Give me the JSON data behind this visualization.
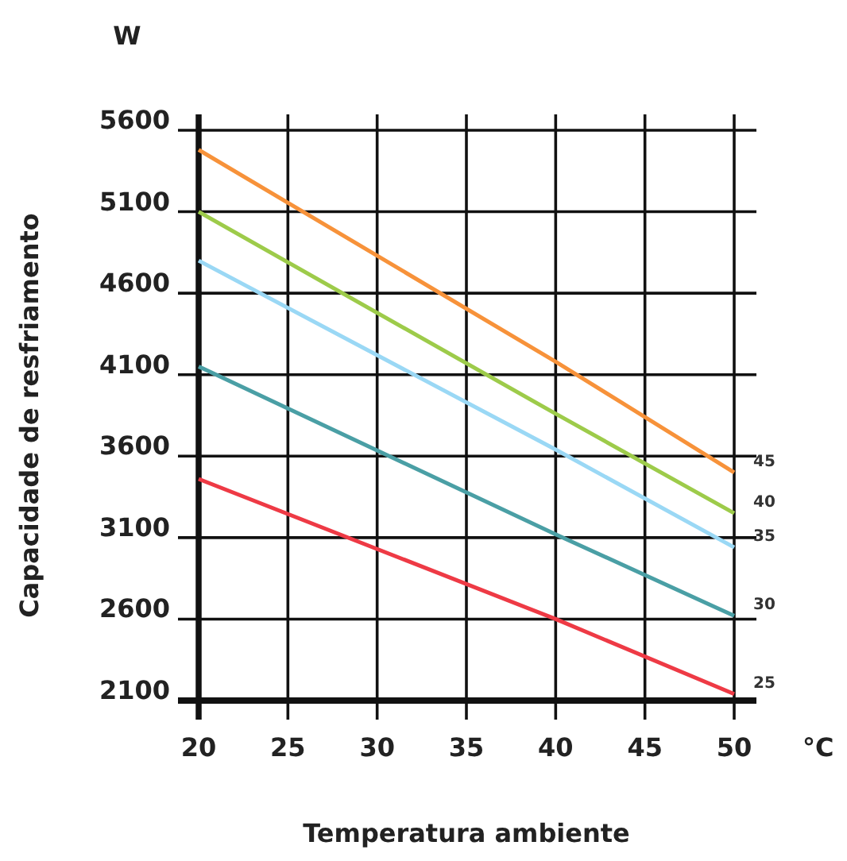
{
  "chart_data": {
    "type": "line",
    "xlabel": "Temperatura ambiente",
    "ylabel": "Capacidade de resfriamento",
    "annotations": [
      "W",
      "°C"
    ],
    "x": [
      20,
      40,
      50
    ],
    "series": [
      {
        "name": "45",
        "color": "#f7923a",
        "values": [
          5480,
          4180,
          3500
        ]
      },
      {
        "name": "40",
        "color": "#9dcb4a",
        "values": [
          5100,
          3860,
          3250
        ]
      },
      {
        "name": "35",
        "color": "#9ad8f5",
        "values": [
          4800,
          3640,
          3040
        ]
      },
      {
        "name": "30",
        "color": "#4a9fa5",
        "values": [
          4150,
          3120,
          2620
        ]
      },
      {
        "name": "25",
        "color": "#ee3a45",
        "values": [
          3460,
          2600,
          2140
        ]
      }
    ],
    "xlim": [
      20,
      50
    ],
    "xticks": [
      20,
      25,
      30,
      35,
      40,
      45,
      50
    ],
    "ylim": [
      2100,
      5600
    ],
    "yticks": [
      2100,
      2600,
      3100,
      3600,
      4100,
      4600,
      5100,
      5600
    ],
    "grid": true,
    "marker": "none",
    "line_style": "solid"
  }
}
